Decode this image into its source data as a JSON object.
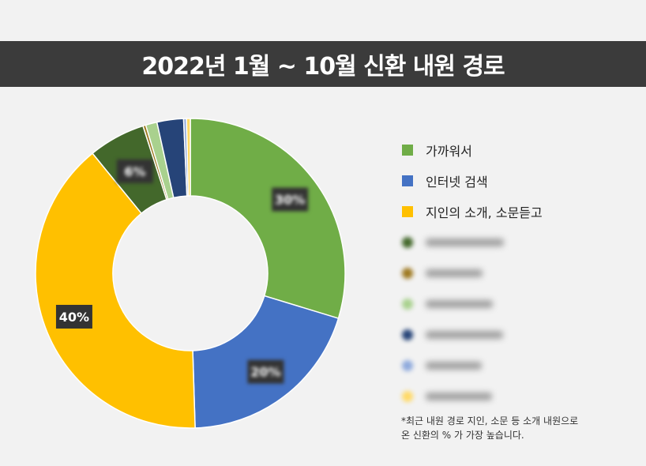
{
  "title": "2022년 1월 ~ 10월 신환 내원 경로",
  "chart_data": {
    "type": "pie",
    "donut": true,
    "slices": [
      {
        "label": "가까워서",
        "value": 30,
        "color": "#70ad47",
        "data_label": "30%",
        "blurred": false
      },
      {
        "label": "인터넷 검색",
        "value": 20,
        "color": "#4472c4",
        "data_label": "20%",
        "blurred": false
      },
      {
        "label": "지인의 소개, 소문듣고",
        "value": 40,
        "color": "#ffc000",
        "data_label": "40%",
        "blurred": false
      },
      {
        "label": "",
        "value": 6,
        "color": "#43682b",
        "data_label": "6%",
        "blurred": true
      },
      {
        "label": "",
        "value": 0.3,
        "color": "#9e7920",
        "data_label": "",
        "blurred": true
      },
      {
        "label": "",
        "value": 1.2,
        "color": "#a9d18e",
        "data_label": "",
        "blurred": true
      },
      {
        "label": "",
        "value": 2.8,
        "color": "#264478",
        "data_label": "",
        "blurred": true
      },
      {
        "label": "",
        "value": 0.3,
        "color": "#8faadc",
        "data_label": "",
        "blurred": true
      },
      {
        "label": "",
        "value": 0.4,
        "color": "#ffd966",
        "data_label": "",
        "blurred": true
      }
    ]
  },
  "footnote": "*최근 내원 경로 지인, 소문 등 소개 내원으로\n  온 신환의 % 가 가장 높습니다."
}
